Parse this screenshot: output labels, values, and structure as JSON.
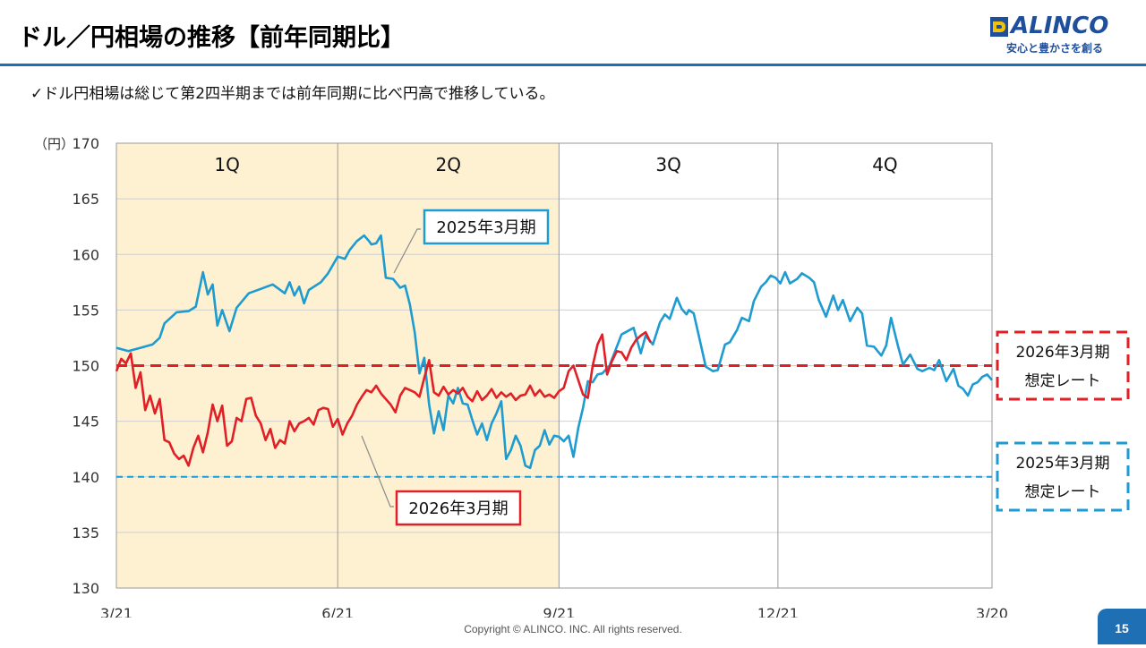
{
  "header": {
    "title": "ドル／円相場の推移【前年同期比】",
    "logo_name": "ALINCO",
    "logo_tagline": "安心と豊かさを創る",
    "bullet": "✓ドル円相場は総じて第2四半期までは前年同期に比べ円高で推移している。"
  },
  "footer": {
    "copyright": "Copyright © ALINCO. INC. All rights reserved.",
    "page": "15"
  },
  "colors": {
    "fy2025": "#1e9bd0",
    "fy2026": "#e01f26",
    "highlight": "#fdf1d1",
    "brand": "#1f6fb5"
  },
  "chart_data": {
    "type": "line",
    "ylabel": "（円）",
    "ylim": [
      130,
      170
    ],
    "yticks": [
      130,
      135,
      140,
      145,
      150,
      155,
      160,
      165,
      170
    ],
    "xlim": [
      0,
      364
    ],
    "xticks": [
      {
        "label": "3/21",
        "x": 0
      },
      {
        "label": "6/21",
        "x": 92
      },
      {
        "label": "9/21",
        "x": 184
      },
      {
        "label": "12/21",
        "x": 275
      },
      {
        "label": "3/20",
        "x": 364
      }
    ],
    "grid": true,
    "quarters": [
      {
        "label": "1Q",
        "start": 0,
        "end": 92,
        "highlight": true
      },
      {
        "label": "2Q",
        "start": 92,
        "end": 184,
        "highlight": true
      },
      {
        "label": "3Q",
        "start": 184,
        "end": 275,
        "highlight": false
      },
      {
        "label": "4Q",
        "start": 275,
        "end": 364,
        "highlight": false
      }
    ],
    "series": [
      {
        "name": "2025年3月期",
        "color": "#1e9bd0",
        "x": [
          0,
          5,
          10,
          15,
          18,
          20,
          25,
          30,
          33,
          36,
          38,
          40,
          42,
          44,
          47,
          50,
          55,
          60,
          65,
          70,
          72,
          74,
          76,
          78,
          80,
          85,
          88,
          92,
          95,
          97,
          100,
          103,
          105,
          106,
          108,
          110,
          112,
          115,
          118,
          120,
          122,
          124,
          126,
          128,
          130,
          132,
          134,
          136,
          138,
          140,
          142,
          144,
          146,
          148,
          150,
          152,
          154,
          156,
          158,
          160,
          162,
          164,
          166,
          168,
          170,
          172,
          174,
          176,
          178,
          180,
          182,
          184,
          186,
          188,
          190,
          192,
          194,
          196,
          198,
          200,
          202,
          205,
          210,
          215,
          218,
          220,
          223,
          226,
          228,
          230,
          233,
          235,
          237,
          238,
          240,
          242,
          245,
          248,
          250,
          253,
          255,
          258,
          260,
          263,
          265,
          268,
          270,
          272,
          274,
          276,
          278,
          280,
          283,
          285,
          288,
          290,
          292,
          295,
          298,
          300,
          302,
          305,
          308,
          310,
          312,
          315,
          318,
          320,
          322,
          325,
          327,
          330,
          333,
          335,
          338,
          340,
          342,
          345,
          348,
          350,
          352,
          354,
          356,
          358,
          360,
          362,
          364
        ],
        "values": [
          151.6,
          151.3,
          151.6,
          151.9,
          152.5,
          153.8,
          154.8,
          154.9,
          155.3,
          158.4,
          156.4,
          157.3,
          153.6,
          155.0,
          153.1,
          155.2,
          156.5,
          156.9,
          157.3,
          156.5,
          157.5,
          156.3,
          157.1,
          155.6,
          156.8,
          157.5,
          158.3,
          159.8,
          159.6,
          160.4,
          161.2,
          161.7,
          161.2,
          160.9,
          161.0,
          161.7,
          157.9,
          157.8,
          157.0,
          157.2,
          155.5,
          153.0,
          149.3,
          150.7,
          146.5,
          143.9,
          145.9,
          144.2,
          147.3,
          146.6,
          148.0,
          146.6,
          146.5,
          145.1,
          143.8,
          144.8,
          143.3,
          144.8,
          145.7,
          146.8,
          141.6,
          142.4,
          143.7,
          142.8,
          141.0,
          140.8,
          142.4,
          142.8,
          144.2,
          142.9,
          143.7,
          143.6,
          143.2,
          143.7,
          141.8,
          144.4,
          146.2,
          148.6,
          148.5,
          149.2,
          149.3,
          150.0,
          152.8,
          153.4,
          151.1,
          152.7,
          151.9,
          153.9,
          154.6,
          154.2,
          156.1,
          155.1,
          154.6,
          155.0,
          154.7,
          152.8,
          149.9,
          149.5,
          149.6,
          151.9,
          152.1,
          153.2,
          154.3,
          154.0,
          155.8,
          157.1,
          157.5,
          158.1,
          157.9,
          157.4,
          158.4,
          157.4,
          157.8,
          158.3,
          157.9,
          157.5,
          155.9,
          154.4,
          156.3,
          155.0,
          155.9,
          154.0,
          155.2,
          154.7,
          151.8,
          151.7,
          150.9,
          151.8,
          154.3,
          151.7,
          150.1,
          151.0,
          149.7,
          149.5,
          149.8,
          149.6,
          150.5,
          148.6,
          149.7,
          148.2,
          147.9,
          147.3,
          148.3,
          148.5,
          149.0,
          149.2,
          148.7
        ]
      },
      {
        "name": "2026年3月期",
        "color": "#e01f26",
        "x": [
          0,
          2,
          4,
          6,
          8,
          10,
          12,
          14,
          16,
          18,
          20,
          22,
          24,
          26,
          28,
          30,
          32,
          34,
          36,
          38,
          40,
          42,
          44,
          46,
          48,
          50,
          52,
          54,
          56,
          58,
          60,
          62,
          64,
          66,
          68,
          70,
          72,
          74,
          76,
          78,
          80,
          82,
          84,
          86,
          88,
          90,
          92,
          94,
          96,
          98,
          100,
          102,
          104,
          106,
          108,
          110,
          112,
          114,
          116,
          118,
          120,
          122,
          124,
          126,
          128,
          130,
          132,
          134,
          136,
          138,
          140,
          142,
          144,
          146,
          148,
          150,
          152,
          154,
          156,
          158,
          160,
          162,
          164,
          166,
          168,
          170,
          172,
          174,
          176,
          178,
          180,
          182,
          184,
          186,
          188,
          190,
          192,
          194,
          196,
          198,
          200,
          202,
          204,
          206,
          208,
          210,
          212,
          214,
          216,
          218,
          220,
          222
        ],
        "values": [
          149.5,
          150.6,
          150.2,
          151.1,
          148.0,
          149.4,
          146.0,
          147.3,
          145.7,
          147.0,
          143.3,
          143.1,
          142.1,
          141.6,
          141.9,
          141.0,
          142.6,
          143.7,
          142.2,
          144.0,
          146.5,
          145.0,
          146.4,
          142.8,
          143.2,
          145.3,
          145.0,
          147.0,
          147.1,
          145.5,
          144.8,
          143.3,
          144.3,
          142.6,
          143.3,
          143.0,
          145.0,
          144.1,
          144.8,
          145.0,
          145.3,
          144.7,
          146.0,
          146.2,
          146.1,
          144.5,
          145.2,
          143.8,
          144.8,
          145.5,
          146.5,
          147.2,
          147.8,
          147.6,
          148.2,
          147.5,
          147.0,
          146.5,
          145.8,
          147.3,
          148.0,
          147.8,
          147.6,
          147.2,
          148.9,
          150.5,
          147.6,
          147.3,
          148.1,
          147.4,
          147.8,
          147.5,
          148.0,
          147.2,
          146.8,
          147.7,
          146.9,
          147.3,
          147.9,
          147.1,
          147.6,
          147.2,
          147.5,
          146.9,
          147.3,
          147.4,
          148.2,
          147.3,
          147.8,
          147.2,
          147.4,
          147.1,
          147.7,
          148.0,
          149.5,
          150.0,
          148.7,
          147.4,
          147.1,
          150.0,
          151.9,
          152.8,
          149.2,
          150.4,
          151.3,
          151.2,
          150.5,
          151.6,
          152.3,
          152.7,
          153.0,
          152.1
        ]
      }
    ],
    "reference_lines": [
      {
        "label": "2026年3月期",
        "sublabel": "想定レート",
        "value": 150,
        "color": "#e01f26"
      },
      {
        "label": "2025年3月期",
        "sublabel": "想定レート",
        "value": 140,
        "color": "#1e9bd0"
      }
    ],
    "callouts": [
      {
        "text": "2025年3月期",
        "series": "2025年3月期",
        "color": "#1e9bd0"
      },
      {
        "text": "2026年3月期",
        "series": "2026年3月期",
        "color": "#e01f26"
      }
    ]
  }
}
